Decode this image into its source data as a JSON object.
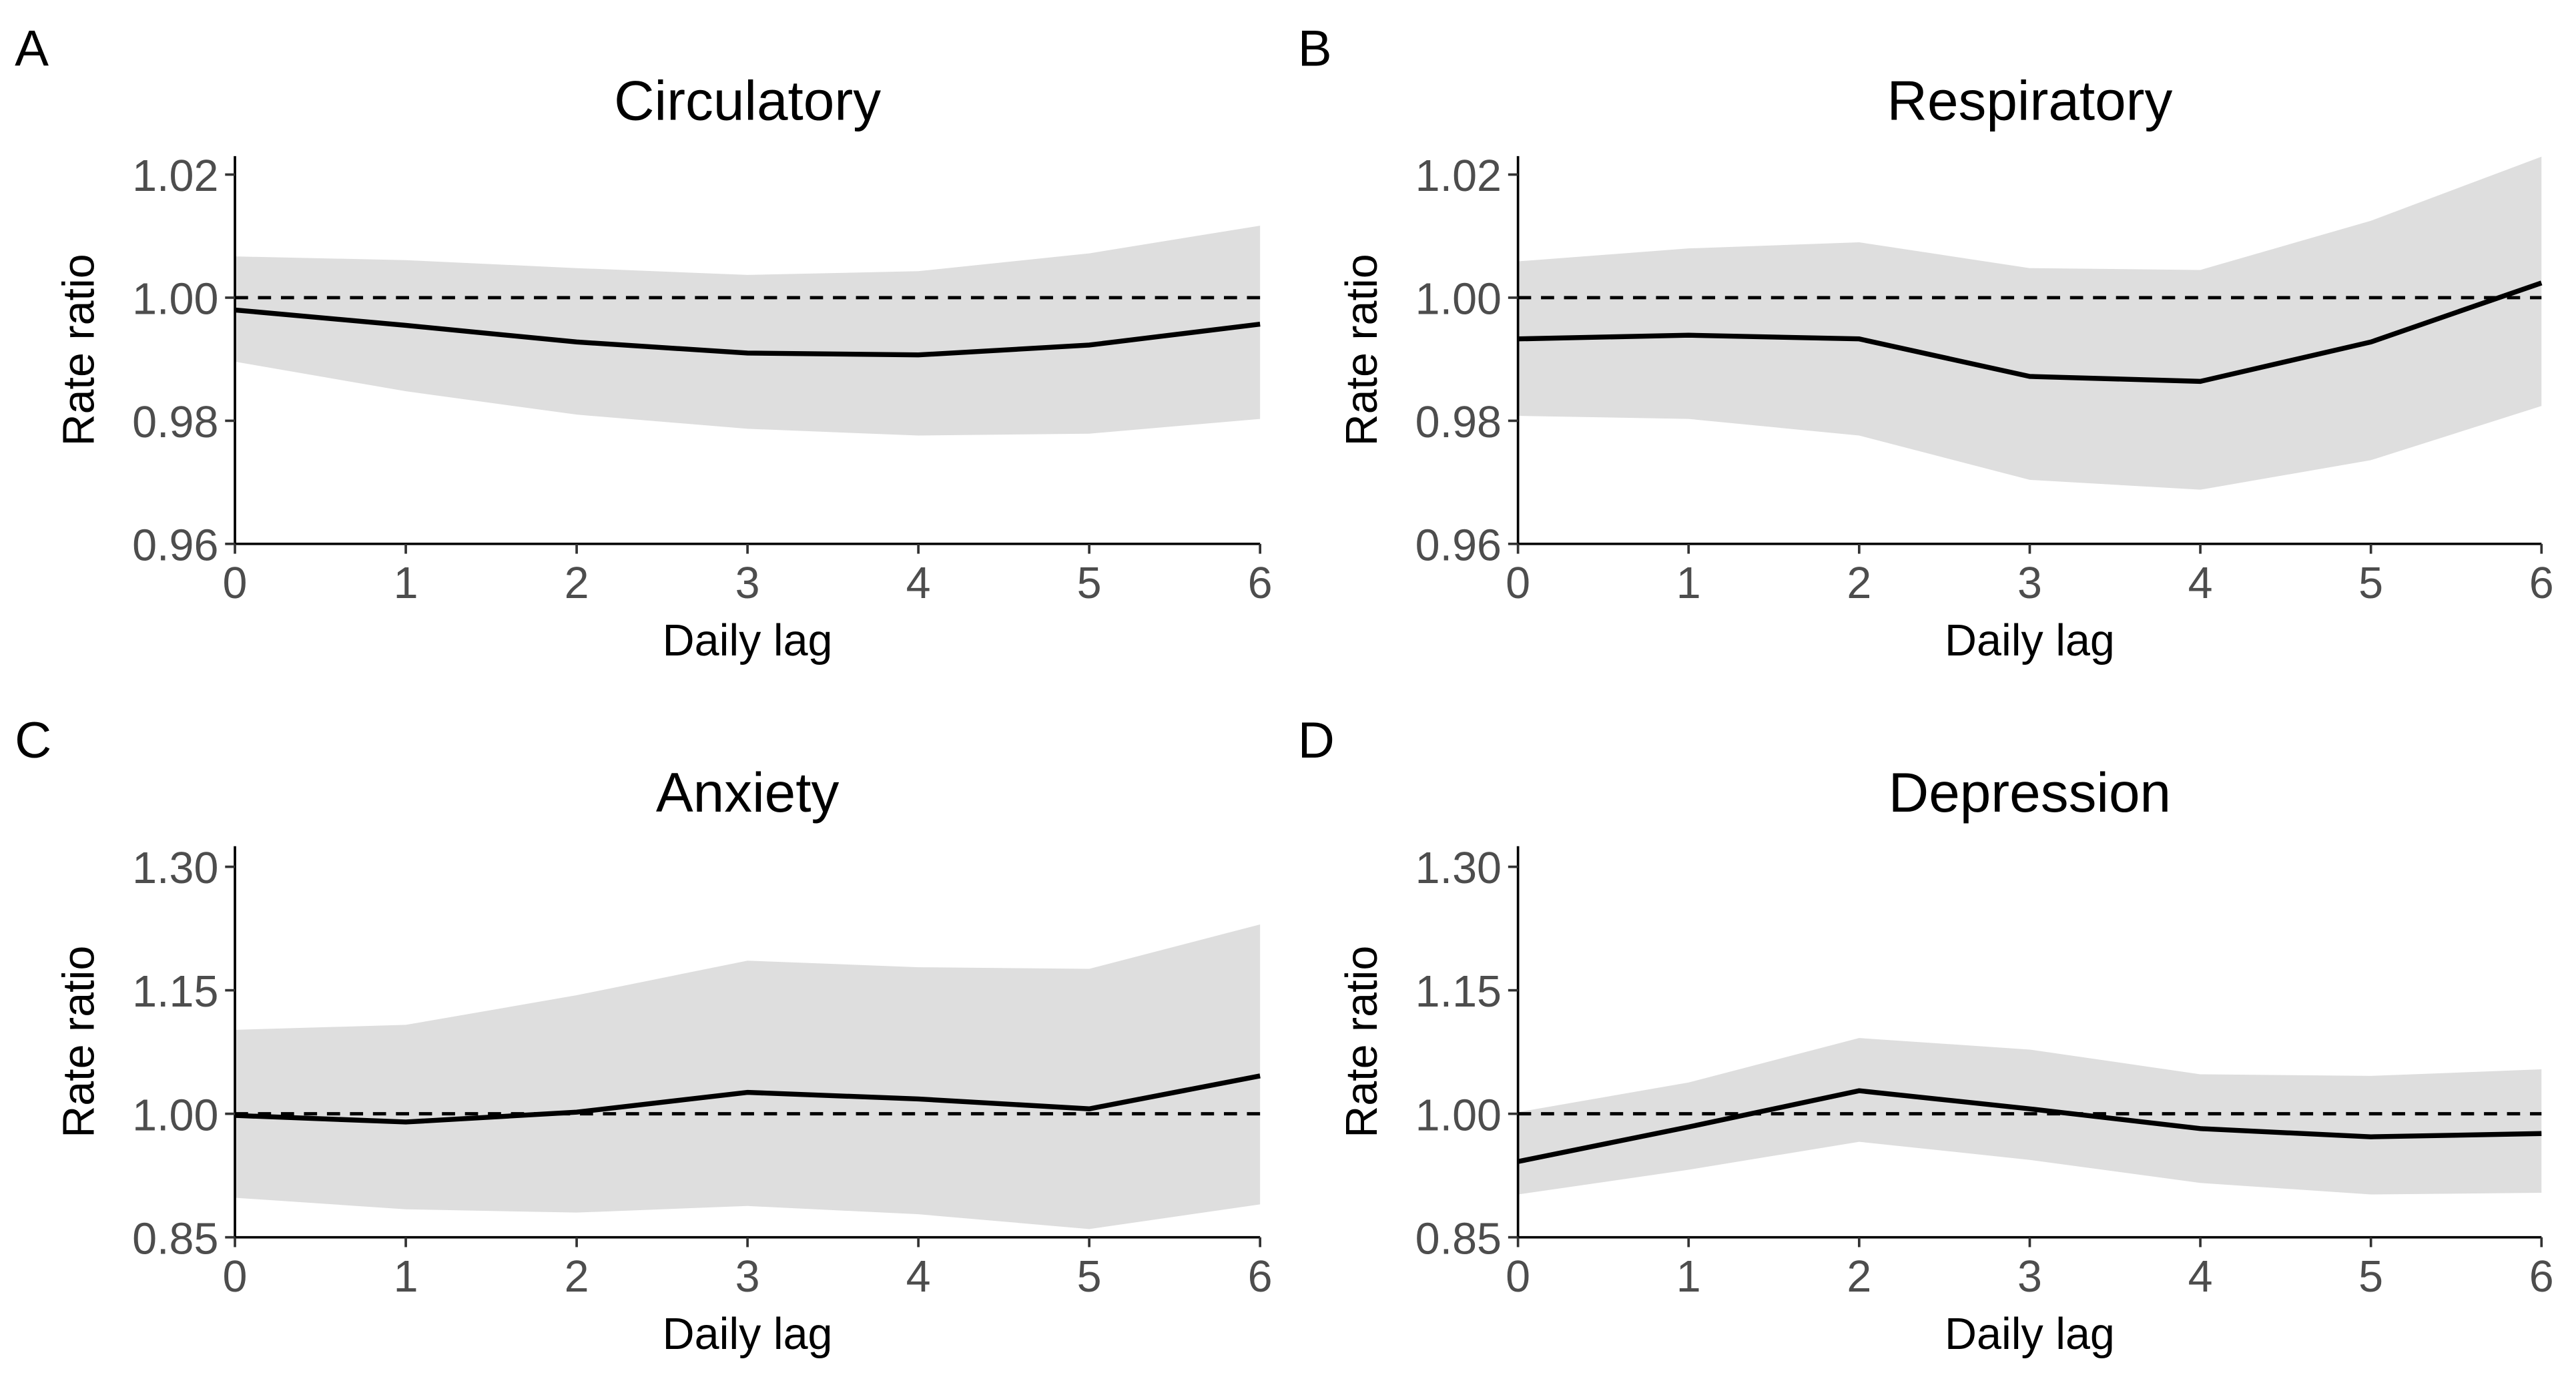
{
  "chart_data": [
    {
      "type": "line",
      "panel_label": "A",
      "title": "Circulatory",
      "xlabel": "Daily lag",
      "ylabel": "Rate ratio",
      "x": [
        0,
        1,
        2,
        3,
        4,
        5,
        6
      ],
      "values": [
        0.998,
        0.9955,
        0.9928,
        0.991,
        0.9907,
        0.9923,
        0.9957
      ],
      "upper": [
        1.0067,
        1.0061,
        1.0048,
        1.0037,
        1.0043,
        1.0072,
        1.0117
      ],
      "lower": [
        0.9896,
        0.9848,
        0.981,
        0.9787,
        0.9776,
        0.9779,
        0.9803
      ],
      "color": "#000000",
      "band_color": "#dedede",
      "hline": 1,
      "xlim": [
        0,
        6
      ],
      "xticks": [
        0,
        1,
        2,
        3,
        4,
        5,
        6
      ],
      "ylim": [
        0.96,
        1.023
      ],
      "yticks": [
        0.96,
        0.98,
        {
          "value": 1,
          "label": "1.00"
        },
        1.02
      ]
    },
    {
      "type": "line",
      "panel_label": "B",
      "title": "Respiratory",
      "xlabel": "Daily lag",
      "ylabel": "Rate ratio",
      "x": [
        0,
        1,
        2,
        3,
        4,
        5,
        6
      ],
      "values": [
        0.9933,
        0.9939,
        0.9933,
        0.9872,
        0.9864,
        0.9928,
        1.0024
      ],
      "upper": [
        1.0059,
        1.008,
        1.009,
        1.0048,
        1.0045,
        1.0125,
        1.0229
      ],
      "lower": [
        0.9808,
        0.9803,
        0.9776,
        0.9704,
        0.9688,
        0.9736,
        0.9824
      ],
      "color": "#000000",
      "band_color": "#dedede",
      "hline": 1,
      "xlim": [
        0,
        6
      ],
      "xticks": [
        0,
        1,
        2,
        3,
        4,
        5,
        6
      ],
      "ylim": [
        0.96,
        1.023
      ],
      "yticks": [
        0.96,
        0.98,
        {
          "value": 1,
          "label": "1.00"
        },
        1.02
      ]
    },
    {
      "type": "line",
      "panel_label": "C",
      "title": "Anxiety",
      "xlabel": "Daily lag",
      "ylabel": "Rate ratio",
      "x": [
        0,
        1,
        2,
        3,
        4,
        5,
        6
      ],
      "values": [
        0.998,
        0.99,
        1.002,
        1.026,
        1.018,
        1.006,
        1.046
      ],
      "upper": [
        1.102,
        1.108,
        1.144,
        1.186,
        1.178,
        1.176,
        1.23
      ],
      "lower": [
        0.898,
        0.884,
        0.88,
        0.888,
        0.878,
        0.86,
        0.89
      ],
      "color": "#000000",
      "band_color": "#dedede",
      "hline": 1,
      "xlim": [
        0,
        6
      ],
      "xticks": [
        0,
        1,
        2,
        3,
        4,
        5,
        6
      ],
      "ylim": [
        0.85,
        1.325
      ],
      "yticks": [
        0.85,
        {
          "value": 1,
          "label": "1.00"
        },
        1.15,
        {
          "value": 1.3,
          "label": "1.30"
        }
      ]
    },
    {
      "type": "line",
      "panel_label": "D",
      "title": "Depression",
      "xlabel": "Daily lag",
      "ylabel": "Rate ratio",
      "x": [
        0,
        1,
        2,
        3,
        4,
        5,
        6
      ],
      "values": [
        0.942,
        0.984,
        1.028,
        1.006,
        0.982,
        0.972,
        0.976
      ],
      "upper": [
        1.002,
        1.038,
        1.092,
        1.078,
        1.048,
        1.046,
        1.054
      ],
      "lower": [
        0.902,
        0.932,
        0.966,
        0.944,
        0.916,
        0.902,
        0.904
      ],
      "color": "#000000",
      "band_color": "#dedede",
      "hline": 1,
      "xlim": [
        0,
        6
      ],
      "xticks": [
        0,
        1,
        2,
        3,
        4,
        5,
        6
      ],
      "ylim": [
        0.85,
        1.325
      ],
      "yticks": [
        0.85,
        {
          "value": 1,
          "label": "1.00"
        },
        1.15,
        {
          "value": 1.3,
          "label": "1.30"
        }
      ]
    }
  ]
}
